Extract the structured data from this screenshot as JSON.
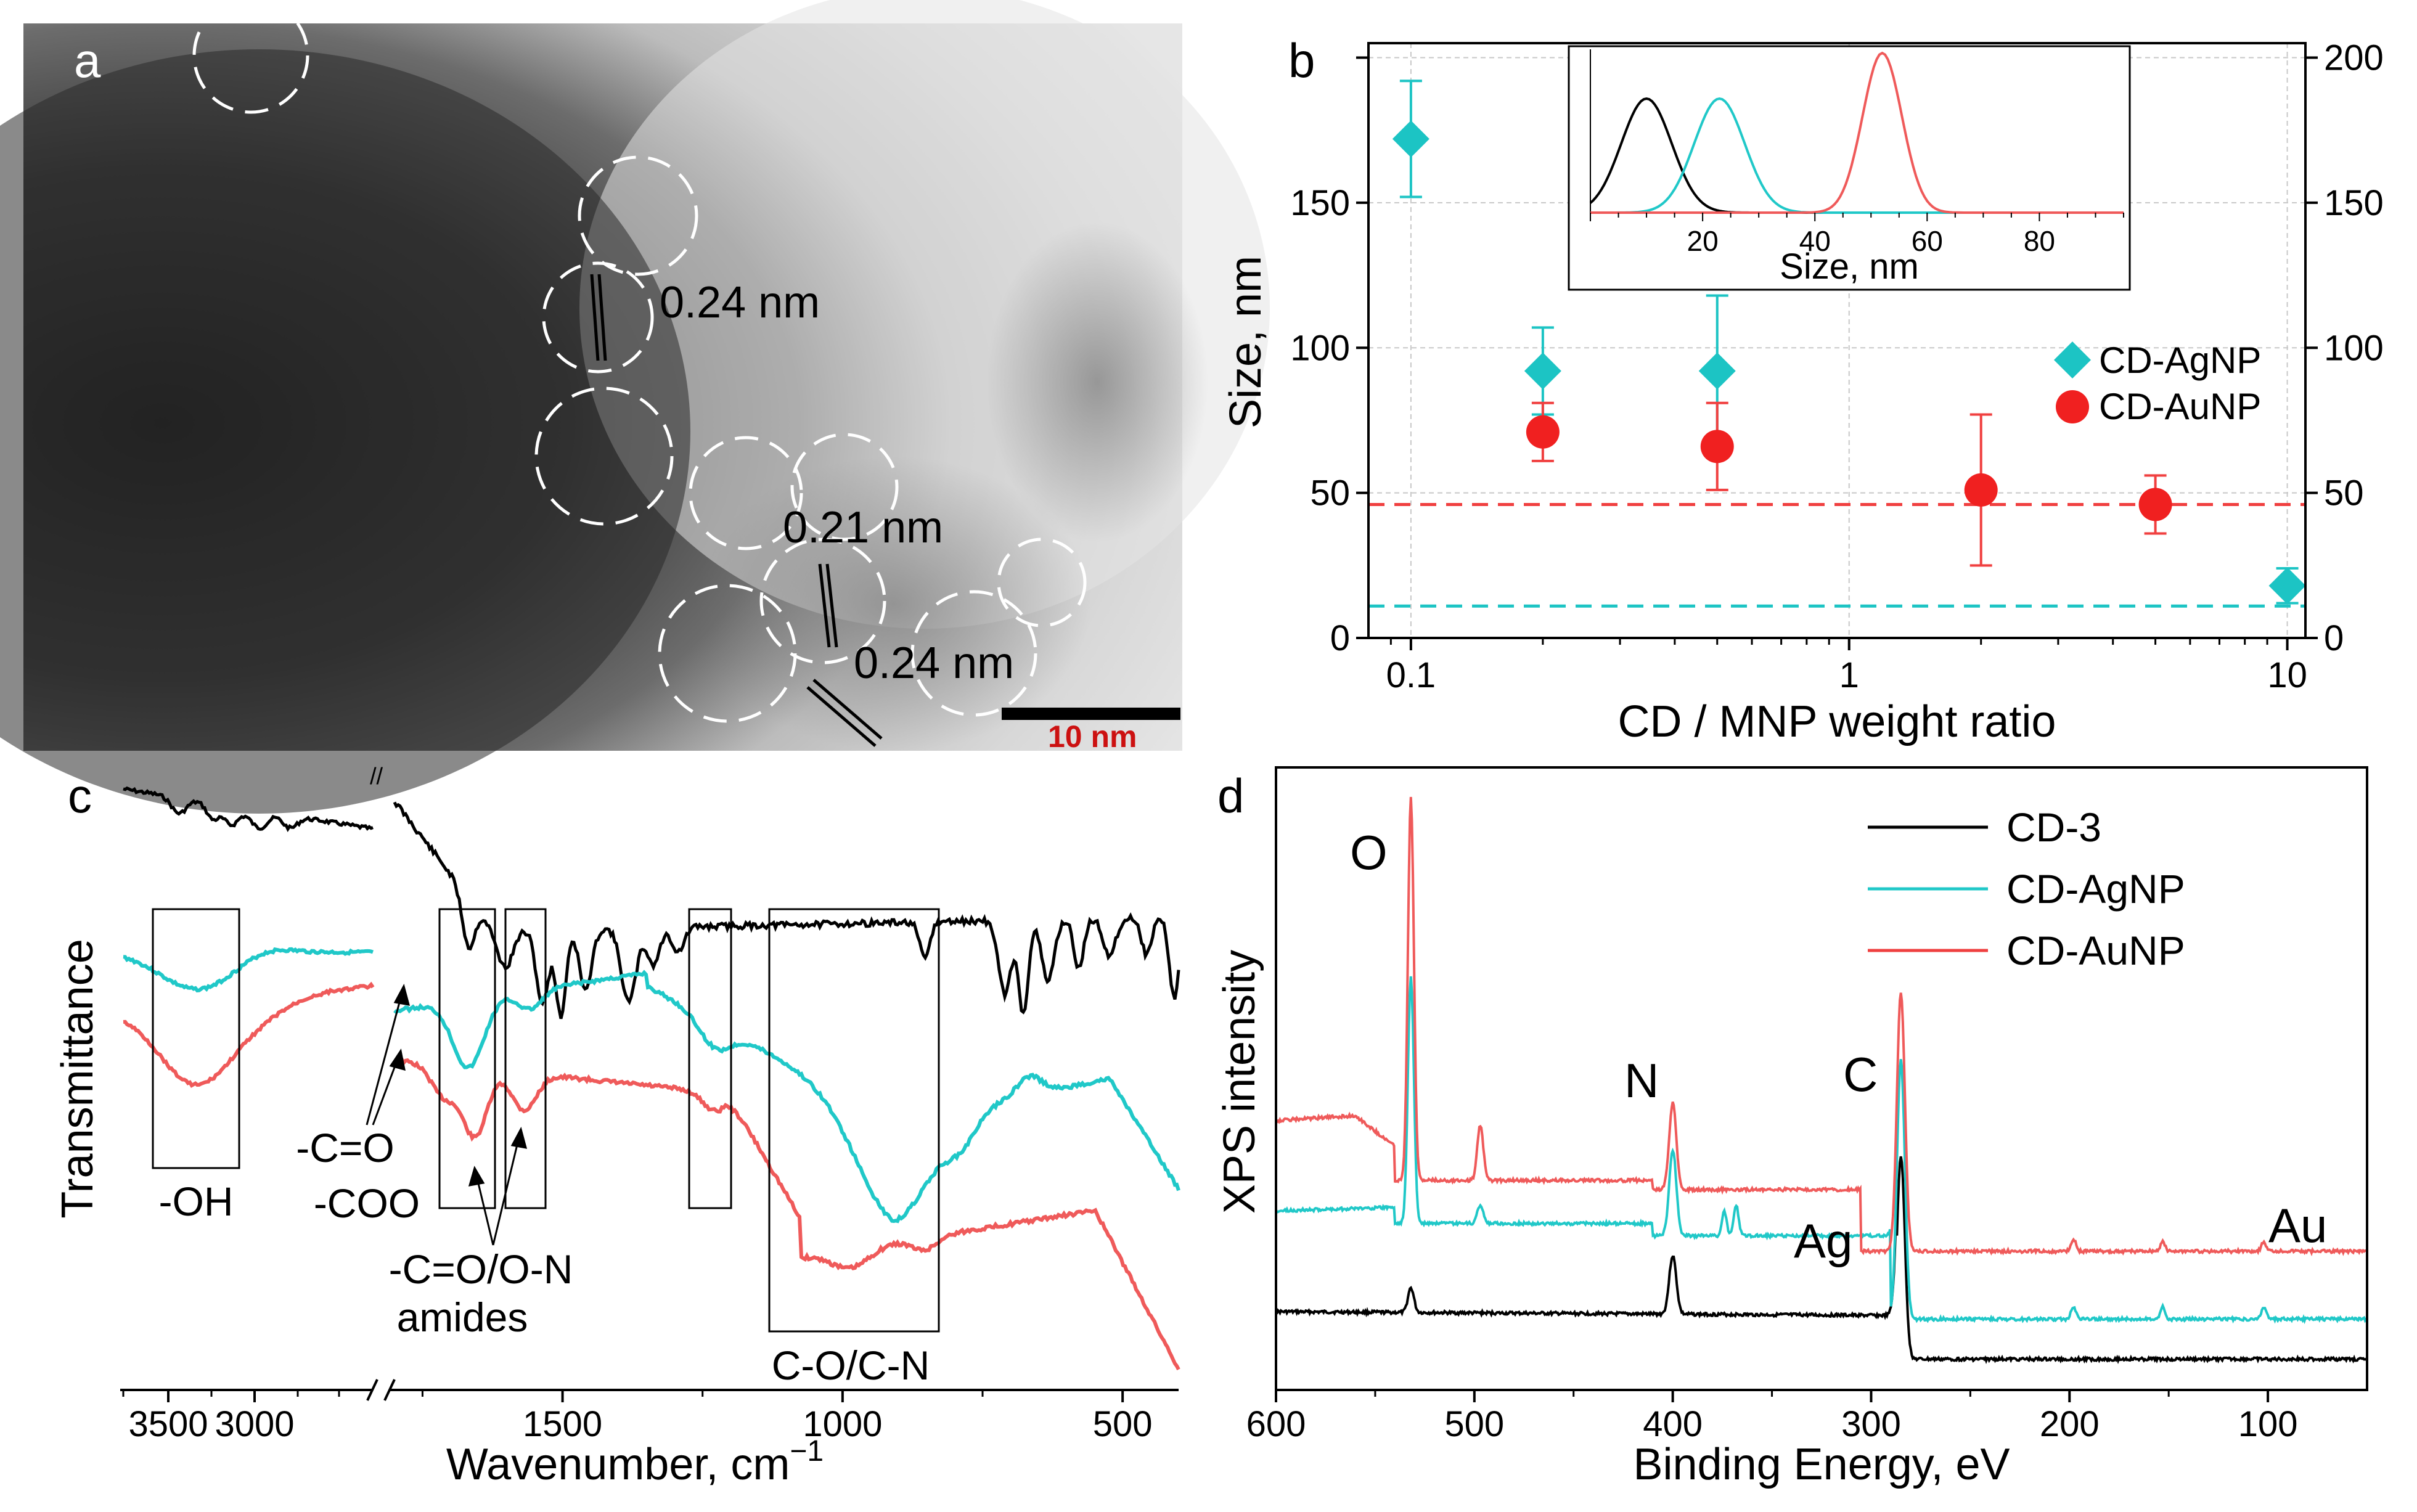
{
  "panels": {
    "a": "a",
    "b": "b",
    "c": "c",
    "d": "d"
  },
  "colors": {
    "ag": "#1cc4c4",
    "au": "#f04040",
    "cd": "#000000",
    "ag_line": "#20c8c8",
    "au_line": "#ef5a5a",
    "scale_bar_text": "#cc1111"
  },
  "panel_a": {
    "lattice_labels": [
      "0.24 nm",
      "0.21 nm",
      "0.24 nm"
    ],
    "scale_bar": "10 nm"
  },
  "chart_data": [
    {
      "id": "b",
      "type": "scatter",
      "xscale": "log",
      "xlabel": "CD / MNP weight ratio",
      "ylabel": "Size, nm",
      "xlim": [
        0.08,
        11
      ],
      "ylim": [
        0,
        205
      ],
      "xticks": [
        0.1,
        1,
        10
      ],
      "xtick_labels": [
        "0.1",
        "1",
        "10"
      ],
      "yticks": [
        0,
        50,
        100,
        150,
        200
      ],
      "ytick_labels_left": [
        "0",
        "50",
        "100",
        "150"
      ],
      "ytick_labels_right": [
        "0",
        "50",
        "100",
        "150",
        "200"
      ],
      "legend": [
        "CD-AgNP",
        "CD-AuNP"
      ],
      "series": [
        {
          "name": "CD-AgNP",
          "marker": "diamond",
          "points": [
            {
              "x": 0.1,
              "y": 172,
              "err": 20
            },
            {
              "x": 0.2,
              "y": 92,
              "err": 15
            },
            {
              "x": 0.5,
              "y": 92,
              "err": 26
            },
            {
              "x": 10,
              "y": 18,
              "err": 6
            }
          ]
        },
        {
          "name": "CD-AuNP",
          "marker": "circle",
          "points": [
            {
              "x": 0.2,
              "y": 71,
              "err": 10
            },
            {
              "x": 0.5,
              "y": 66,
              "err": 15
            },
            {
              "x": 2,
              "y": 51,
              "err": 26
            },
            {
              "x": 5,
              "y": 46,
              "err": 10
            }
          ]
        }
      ],
      "reference_lines": [
        {
          "series": "CD-AuNP",
          "y": 46
        },
        {
          "series": "CD-AgNP",
          "y": 11
        }
      ],
      "inset": {
        "xlabel": "Size, nm",
        "xlim": [
          0,
          95
        ],
        "xtick_labels": [
          "20",
          "40",
          "60",
          "80"
        ],
        "xticks": [
          20,
          40,
          60,
          80
        ],
        "curves": [
          {
            "name": "CD",
            "center": 10,
            "sigma": 4.5,
            "amp": 1.0
          },
          {
            "name": "CD-AgNP",
            "center": 23,
            "sigma": 4.5,
            "amp": 1.0
          },
          {
            "name": "CD-AuNP",
            "center": 52,
            "sigma": 3.5,
            "amp": 1.4
          }
        ]
      }
    },
    {
      "id": "c",
      "type": "line",
      "xlabel": "Wavenumber, cm",
      "xlabel_superscript": "−1",
      "ylabel": "Transmittance",
      "xaxis_break": "//",
      "xtick_labels": [
        "3500",
        "3000",
        "1500",
        "1000",
        "500"
      ],
      "xticks": [
        3500,
        3000,
        1500,
        1000,
        500
      ],
      "series": [
        "CD",
        "CD-AgNP",
        "CD-AuNP"
      ],
      "annotations": [
        "-OH",
        "-C=O",
        "-COO",
        "-C=O/O-N",
        "amides",
        "C-O/C-N"
      ]
    },
    {
      "id": "d",
      "type": "line",
      "xlabel": "Binding Energy, eV",
      "ylabel": "XPS intensity",
      "xlim": [
        600,
        50
      ],
      "xticks": [
        600,
        500,
        400,
        300,
        200,
        100
      ],
      "xtick_labels": [
        "600",
        "500",
        "400",
        "300",
        "200",
        "100"
      ],
      "legend": [
        "CD-3",
        "CD-AgNP",
        "CD-AuNP"
      ],
      "peak_labels": [
        "O",
        "N",
        "C",
        "Ag",
        "Au"
      ],
      "series": [
        {
          "name": "CD-3",
          "peaks_eV": [
            532,
            400,
            285
          ]
        },
        {
          "name": "CD-AgNP",
          "peaks_eV": [
            532,
            497,
            400,
            374,
            368,
            285,
            198,
            153,
            102
          ]
        },
        {
          "name": "CD-AuNP",
          "peaks_eV": [
            532,
            497,
            400,
            285,
            198,
            153,
            102
          ]
        }
      ]
    }
  ]
}
